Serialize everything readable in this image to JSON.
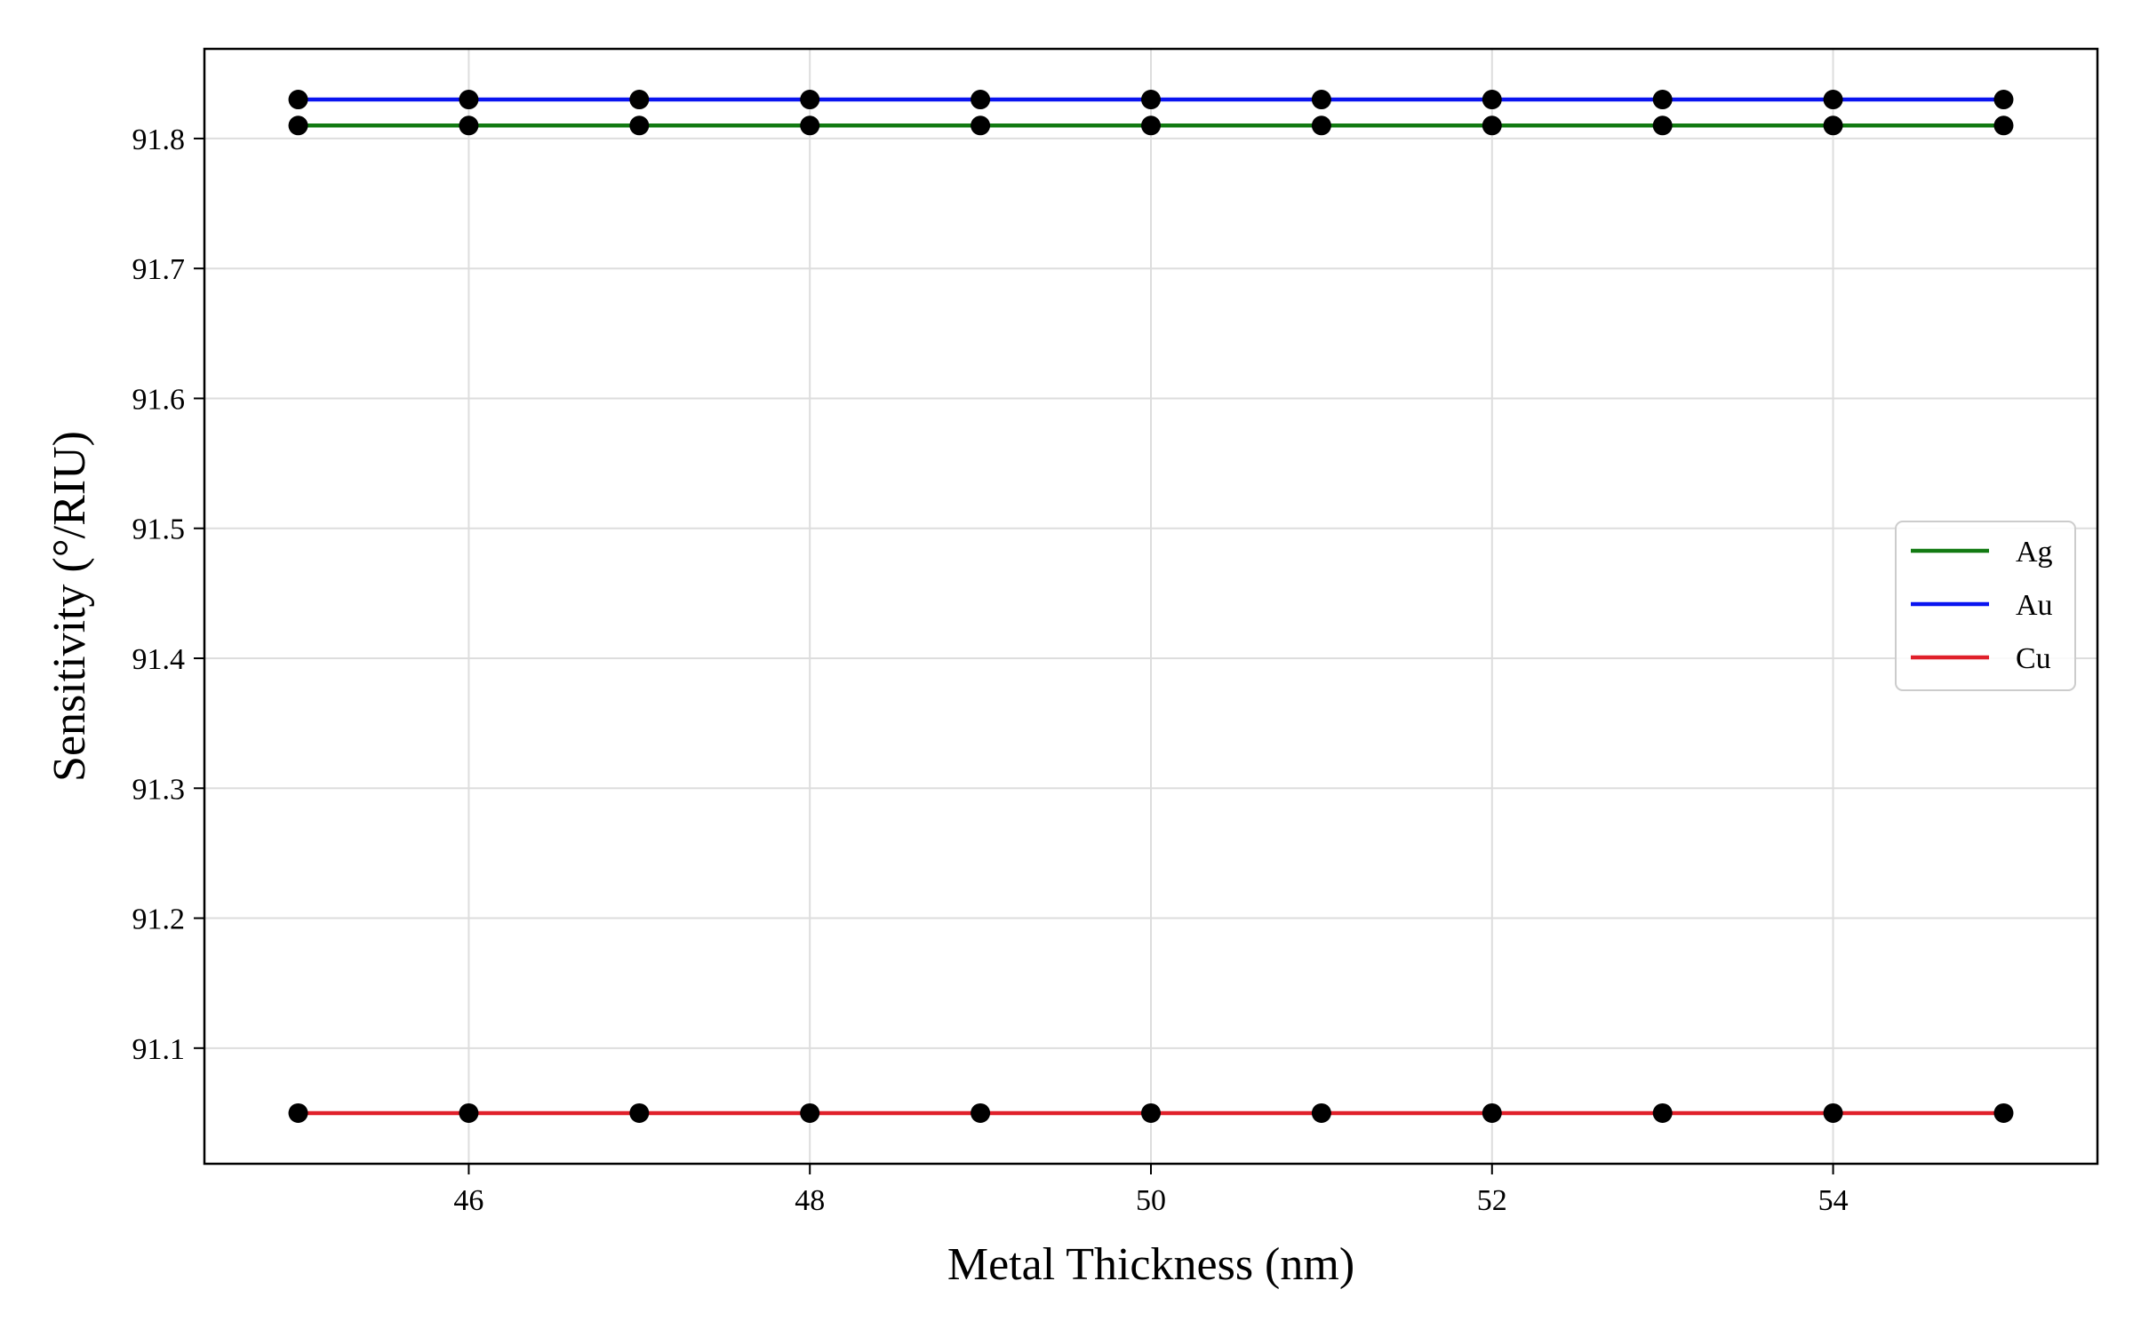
{
  "chart_data": {
    "type": "line",
    "title": "",
    "xlabel": "Metal Thickness (nm)",
    "ylabel": "Sensitivity (°/RIU)",
    "xlim": [
      44.45,
      55.55
    ],
    "ylim": [
      91.011,
      91.869
    ],
    "xticks": [
      46,
      48,
      50,
      52,
      54
    ],
    "xtick_labels": [
      "46",
      "48",
      "50",
      "52",
      "54"
    ],
    "yticks": [
      91.1,
      91.2,
      91.3,
      91.4,
      91.5,
      91.6,
      91.7,
      91.8
    ],
    "ytick_labels": [
      "91.1",
      "91.2",
      "91.3",
      "91.4",
      "91.5",
      "91.6",
      "91.7",
      "91.8"
    ],
    "grid": true,
    "legend_position": "center-right",
    "marker_color": "#000000",
    "x": [
      45,
      46,
      47,
      48,
      49,
      50,
      51,
      52,
      53,
      54,
      55
    ],
    "series": [
      {
        "name": "Ag",
        "color": "#127a12",
        "values": [
          91.81,
          91.81,
          91.81,
          91.81,
          91.81,
          91.81,
          91.81,
          91.81,
          91.81,
          91.81,
          91.81
        ]
      },
      {
        "name": "Au",
        "color": "#0a14f0",
        "values": [
          91.83,
          91.83,
          91.83,
          91.83,
          91.83,
          91.83,
          91.83,
          91.83,
          91.83,
          91.83,
          91.83
        ]
      },
      {
        "name": "Cu",
        "color": "#e0202a",
        "values": [
          91.05,
          91.05,
          91.05,
          91.05,
          91.05,
          91.05,
          91.05,
          91.05,
          91.05,
          91.05,
          91.05
        ]
      }
    ]
  }
}
